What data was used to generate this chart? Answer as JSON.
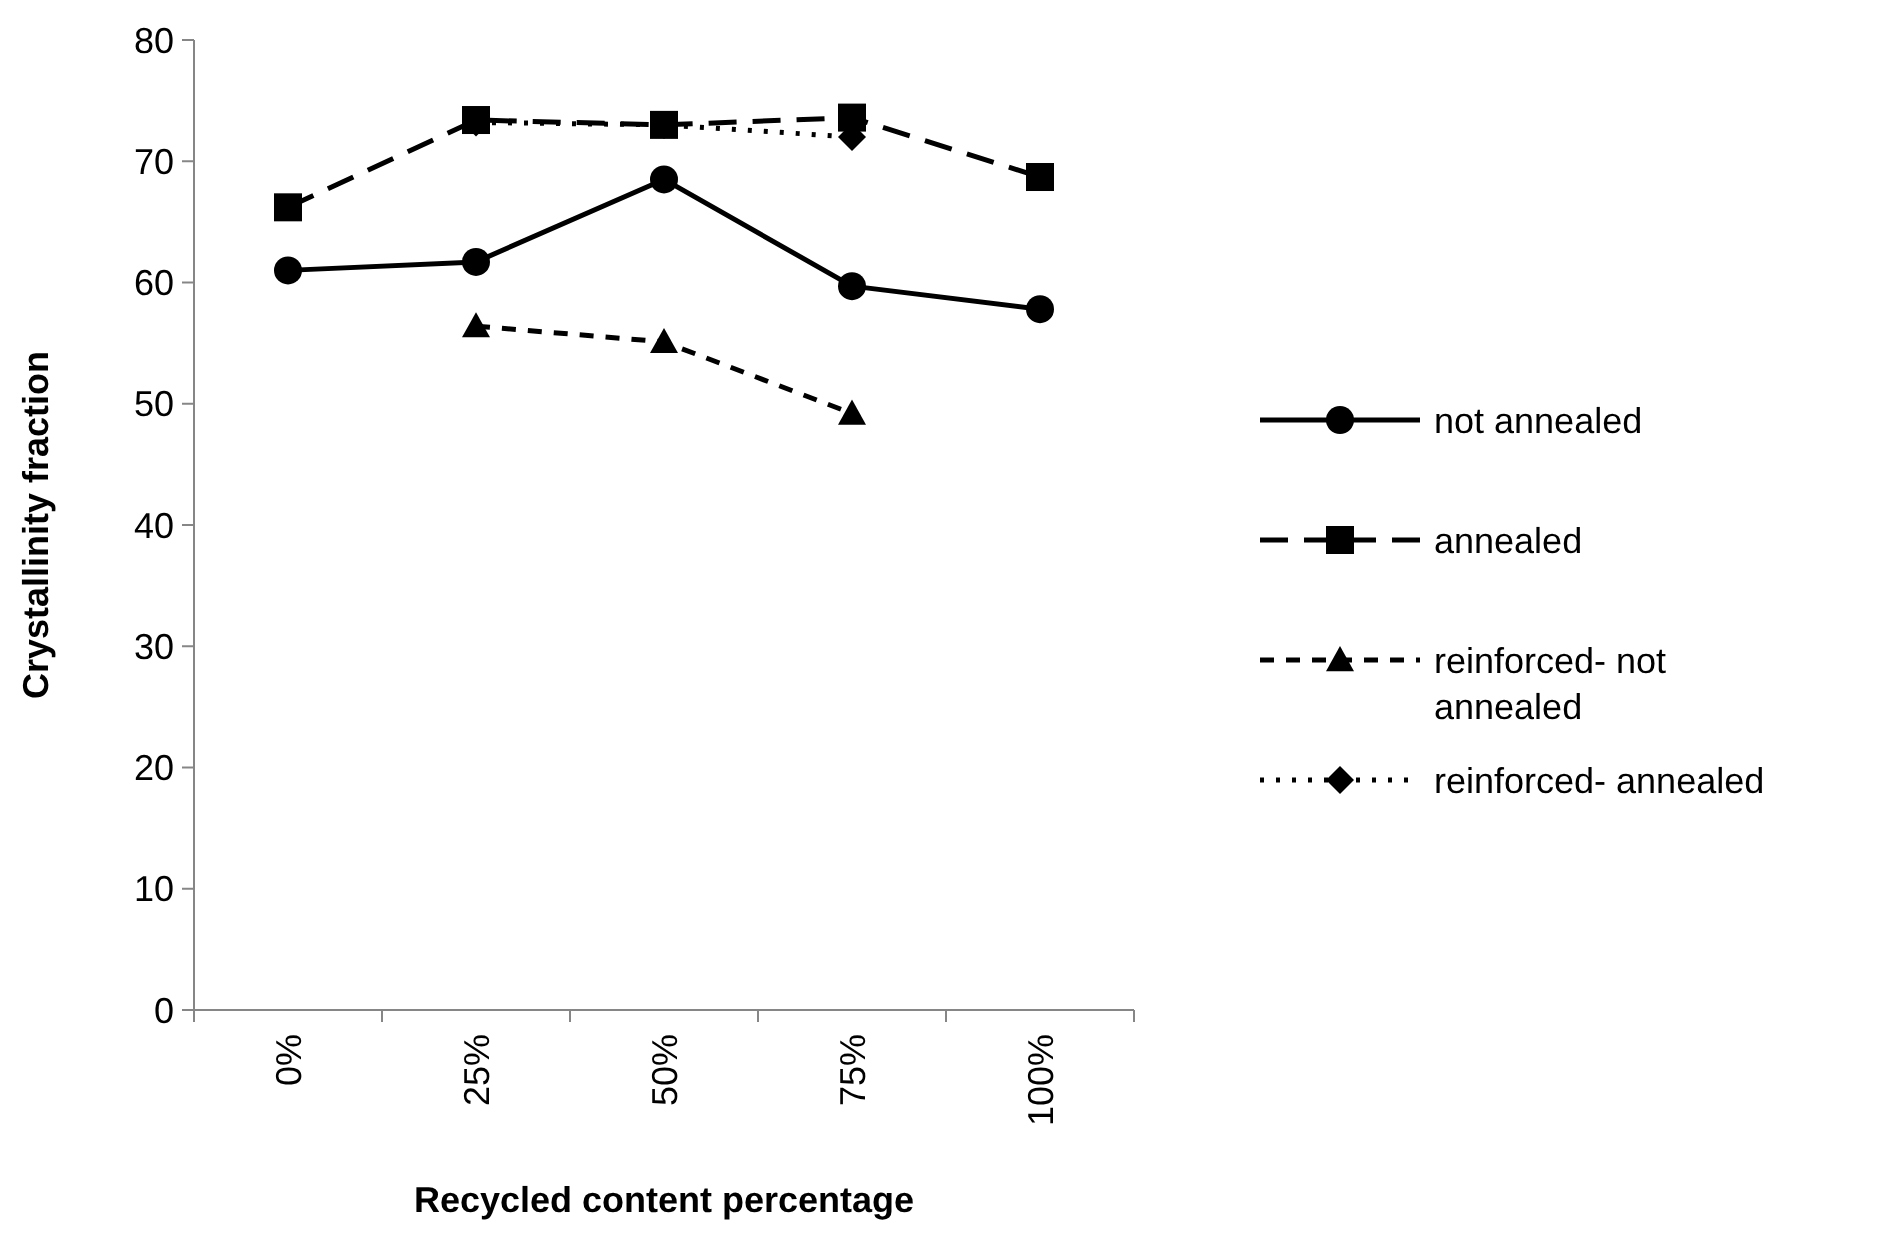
{
  "chart_data": {
    "type": "line",
    "xlabel": "Recycled content percentage",
    "ylabel": "Crystallinity fraction",
    "categories": [
      "0%",
      "25%",
      "50%",
      "75%",
      "100%"
    ],
    "ylim": [
      0,
      80
    ],
    "yticks": [
      0,
      10,
      20,
      30,
      40,
      50,
      60,
      70,
      80
    ],
    "grid": false,
    "legend": "right",
    "series": [
      {
        "name": "not annealed",
        "color": "#000000",
        "marker": "circle",
        "line_style": "solid",
        "values": [
          61.0,
          61.7,
          68.5,
          59.7,
          57.8
        ]
      },
      {
        "name": "annealed",
        "color": "#000000",
        "marker": "square",
        "line_style": "dashed",
        "values": [
          66.2,
          73.4,
          73.0,
          73.6,
          68.7
        ]
      },
      {
        "name": "reinforced- not annealed",
        "color": "#000000",
        "marker": "triangle",
        "line_style": "dashed",
        "values": [
          null,
          56.4,
          55.1,
          49.2,
          null
        ]
      },
      {
        "name": "reinforced- annealed",
        "color": "#000000",
        "marker": "diamond",
        "line_style": "dotted",
        "values": [
          null,
          73.2,
          73.0,
          72.0,
          null
        ]
      }
    ]
  }
}
